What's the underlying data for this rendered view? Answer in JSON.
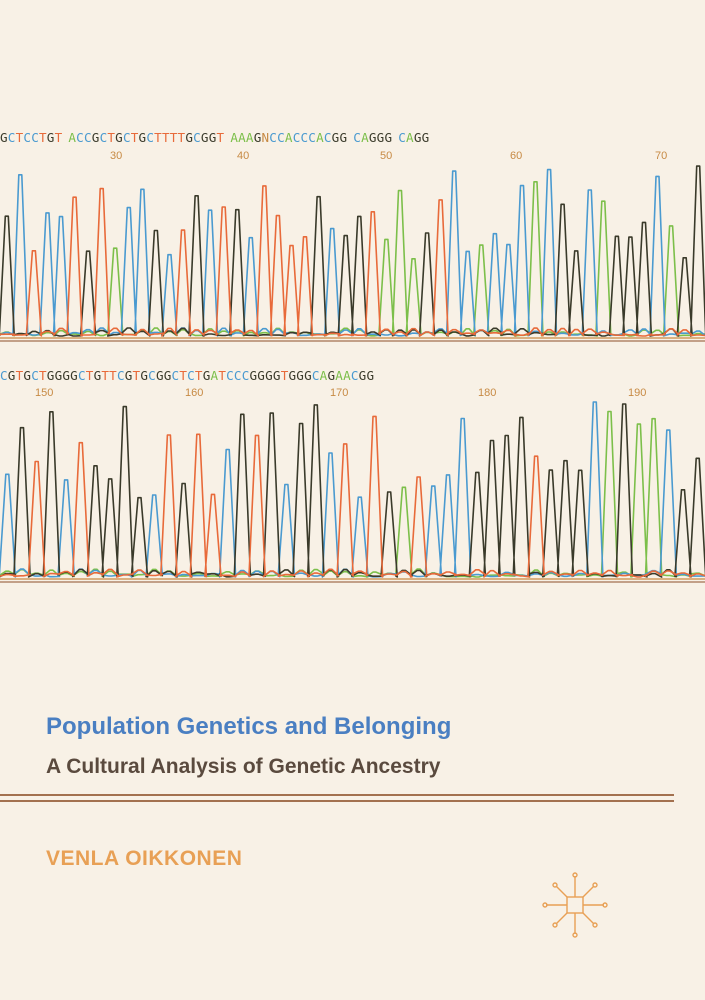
{
  "cover": {
    "title": "Population Genetics and Belonging",
    "subtitle": "A Cultural Analysis of Genetic Ancestry",
    "author": "VENLA OIKKONEN"
  },
  "sequence_rows": [
    {
      "bases": "GCTCCTGT ACCGCTGCTGCTTTTGCGGT AAAGNCCACCCACGG CAGGG CAGG",
      "positions": [
        "30",
        "40",
        "50",
        "60",
        "70"
      ]
    },
    {
      "bases": "CGTGCTGGGGCTGTTCGTGCGGCTCTGATCCCGGGGTGGGCAGAACGG",
      "positions": [
        "150",
        "160",
        "170",
        "180",
        "190"
      ]
    }
  ],
  "colors": {
    "A": "#7cbf4a",
    "C": "#4a9ad0",
    "G": "#3a3a2a",
    "T": "#e86a3a",
    "N": "#c78a44",
    "title": "#4a7fc2",
    "author": "#e8a055",
    "rule": "#a3714f",
    "background": "#f8f1e6"
  },
  "logo": {
    "icon": "publisher-logo-icon"
  }
}
